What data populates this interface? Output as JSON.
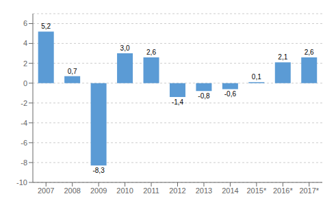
{
  "chart_data": {
    "type": "bar",
    "categories": [
      "2007",
      "2008",
      "2009",
      "2010",
      "2011",
      "2012",
      "2013",
      "2014",
      "2015*",
      "2016*",
      "2017*"
    ],
    "values": [
      5.2,
      0.7,
      -8.3,
      3.0,
      2.6,
      -1.4,
      -0.8,
      -0.6,
      0.1,
      2.1,
      2.6
    ],
    "value_labels": [
      "5,2",
      "0,7",
      "-8,3",
      "3,0",
      "2,6",
      "-1,4",
      "-0,8",
      "-0,6",
      "0,1",
      "2,1",
      "2,6"
    ],
    "color": "#5b9bd5",
    "ylim": [
      -10,
      7
    ],
    "yticks": [
      -10,
      -8,
      -6,
      -4,
      -2,
      0,
      2,
      4,
      6
    ],
    "grid": true,
    "data_labels": true
  }
}
